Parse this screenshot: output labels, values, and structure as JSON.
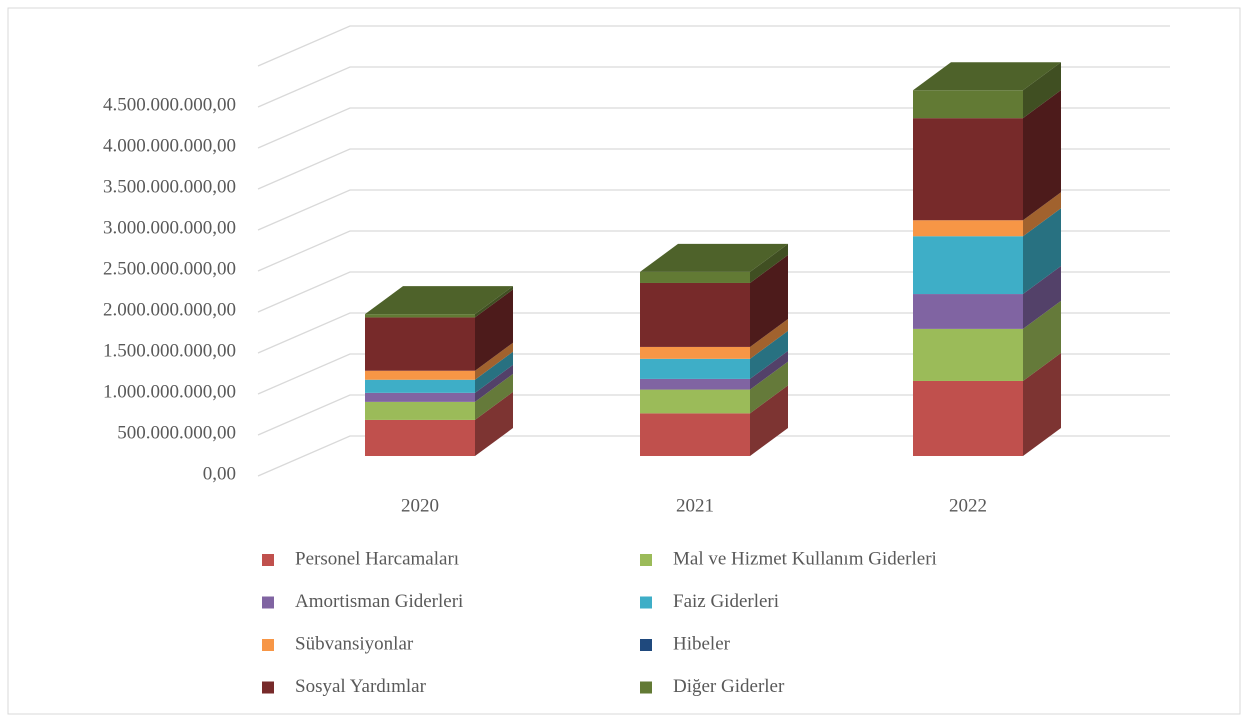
{
  "chart_data": {
    "type": "bar3d_stacked",
    "categories": [
      "2020",
      "2021",
      "2022"
    ],
    "series": [
      {
        "name": "Personel Harcamaları",
        "color": "#c0504d",
        "values": [
          440000000,
          520000000,
          915000000
        ]
      },
      {
        "name": "Mal ve Hizmet Kullanım Giderleri",
        "color": "#9bbb59",
        "values": [
          220000000,
          290000000,
          635000000
        ]
      },
      {
        "name": "Amortisman Giderleri",
        "color": "#8064a2",
        "values": [
          110000000,
          130000000,
          425000000
        ]
      },
      {
        "name": "Faiz Giderleri",
        "color": "#3eaec7",
        "values": [
          160000000,
          245000000,
          705000000
        ]
      },
      {
        "name": "Sübvansiyonlar",
        "color": "#f79646",
        "values": [
          110000000,
          145000000,
          195000000
        ]
      },
      {
        "name": "Hibeler",
        "color": "#1f497d",
        "values": [
          0,
          0,
          0
        ]
      },
      {
        "name": "Sosyal Yardımlar",
        "color": "#772a2a",
        "values": [
          650000000,
          780000000,
          1245000000
        ]
      },
      {
        "name": "Diğer Giderler",
        "color": "#627a34",
        "values": [
          40000000,
          135000000,
          340000000
        ]
      }
    ],
    "ylim": [
      0,
      5000000000
    ],
    "yticks": [
      {
        "value": 0,
        "label": "0,00"
      },
      {
        "value": 500000000,
        "label": "500.000.000,00"
      },
      {
        "value": 1000000000,
        "label": "1.000.000.000,00"
      },
      {
        "value": 1500000000,
        "label": "1.500.000.000,00"
      },
      {
        "value": 2000000000,
        "label": "2.000.000.000,00"
      },
      {
        "value": 2500000000,
        "label": "2.500.000.000,00"
      },
      {
        "value": 3000000000,
        "label": "3.000.000.000,00"
      },
      {
        "value": 3500000000,
        "label": "3.500.000.000,00"
      },
      {
        "value": 4000000000,
        "label": "4.000.000.000,00"
      },
      {
        "value": 4500000000,
        "label": "4.500.000.000,00"
      }
    ],
    "grid": true
  }
}
